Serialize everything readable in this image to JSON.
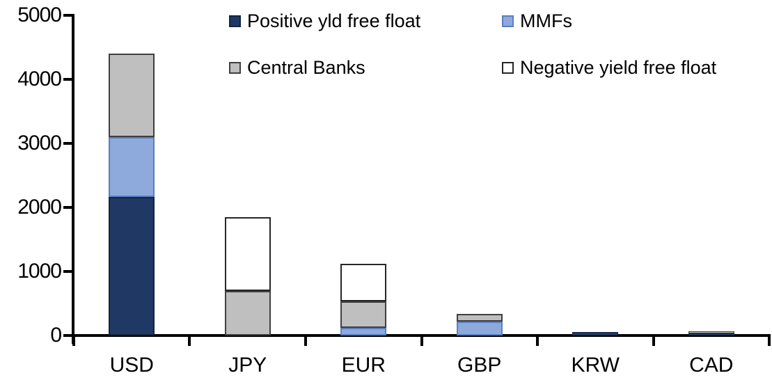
{
  "chart_data": {
    "type": "bar",
    "stacked": true,
    "title": "",
    "xlabel": "",
    "ylabel": "",
    "grid": false,
    "legend_position": "top",
    "ylim": [
      0,
      5000
    ],
    "yticks": [
      0,
      1000,
      2000,
      3000,
      4000,
      5000
    ],
    "ytick_labels": [
      "0",
      "1000",
      "2000",
      "3000",
      "4000",
      "5000"
    ],
    "categories": [
      "USD",
      "JPY",
      "EUR",
      "GBP",
      "KRW",
      "CAD"
    ],
    "series": [
      {
        "name": "Positive yld free float",
        "color": "#1F3864",
        "border_color": "#15243E",
        "values": [
          2160,
          0,
          0,
          0,
          50,
          35
        ]
      },
      {
        "name": "MMFs",
        "color": "#8EAADC",
        "border_color": "#5B7EC0",
        "values": [
          940,
          0,
          125,
          220,
          0,
          0
        ]
      },
      {
        "name": "Central Banks",
        "color": "#BFBFBF",
        "border_color": "#3F3F3F",
        "values": [
          1300,
          700,
          410,
          120,
          0,
          30
        ]
      },
      {
        "name": "Negative yield free float",
        "color": "#FFFFFF",
        "border_color": "#262626",
        "values": [
          0,
          1150,
          580,
          0,
          0,
          0
        ]
      }
    ],
    "axis_color": "#000000",
    "text_color": "#000000",
    "background_color": "#FFFFFF"
  }
}
